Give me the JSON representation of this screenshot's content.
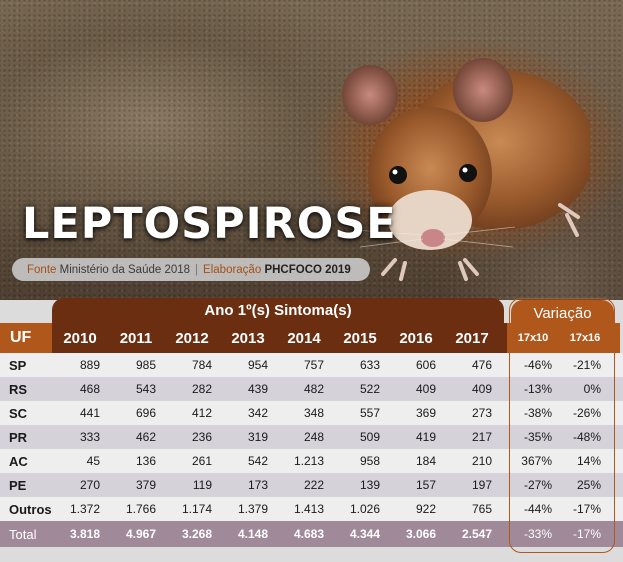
{
  "title": "LEPTOSPIROSE",
  "source": {
    "fonte_label": "Fonte",
    "fonte_value": "Ministério da Saúde 2018",
    "separator": "|",
    "elaboracao_label": "Elaboração",
    "elaboracao_value": "PHCFOCO 2019"
  },
  "table": {
    "group_header": "Ano 1º(s) Sintoma(s)",
    "variation_header": "Variação",
    "uf_header": "UF",
    "years": [
      "2010",
      "2011",
      "2012",
      "2013",
      "2014",
      "2015",
      "2016",
      "2017"
    ],
    "variation_cols": [
      "17x10",
      "17x16"
    ],
    "rows": [
      {
        "uf": "SP",
        "values": [
          "889",
          "985",
          "784",
          "954",
          "757",
          "633",
          "606",
          "476"
        ],
        "var": [
          "-46%",
          "-21%"
        ]
      },
      {
        "uf": "RS",
        "values": [
          "468",
          "543",
          "282",
          "439",
          "482",
          "522",
          "409",
          "409"
        ],
        "var": [
          "-13%",
          "0%"
        ]
      },
      {
        "uf": "SC",
        "values": [
          "441",
          "696",
          "412",
          "342",
          "348",
          "557",
          "369",
          "273"
        ],
        "var": [
          "-38%",
          "-26%"
        ]
      },
      {
        "uf": "PR",
        "values": [
          "333",
          "462",
          "236",
          "319",
          "248",
          "509",
          "419",
          "217"
        ],
        "var": [
          "-35%",
          "-48%"
        ]
      },
      {
        "uf": "AC",
        "values": [
          "45",
          "136",
          "261",
          "542",
          "1.213",
          "958",
          "184",
          "210"
        ],
        "var": [
          "367%",
          "14%"
        ]
      },
      {
        "uf": "PE",
        "values": [
          "270",
          "379",
          "119",
          "173",
          "222",
          "139",
          "157",
          "197"
        ],
        "var": [
          "-27%",
          "25%"
        ]
      },
      {
        "uf": "Outros",
        "values": [
          "1.372",
          "1.766",
          "1.174",
          "1.379",
          "1.413",
          "1.026",
          "922",
          "765"
        ],
        "var": [
          "-44%",
          "-17%"
        ]
      }
    ],
    "total": {
      "uf": "Total",
      "values": [
        "3.818",
        "4.967",
        "3.268",
        "4.148",
        "4.683",
        "4.344",
        "3.066",
        "2.547"
      ],
      "var": [
        "-33%",
        "-17%"
      ]
    }
  },
  "colors": {
    "header_dark": "#6b2e11",
    "header_orange": "#b0581c",
    "label_orange": "#a44e17",
    "total_row": "#a08a99"
  },
  "icons": {
    "photo": "mouse-photo"
  }
}
